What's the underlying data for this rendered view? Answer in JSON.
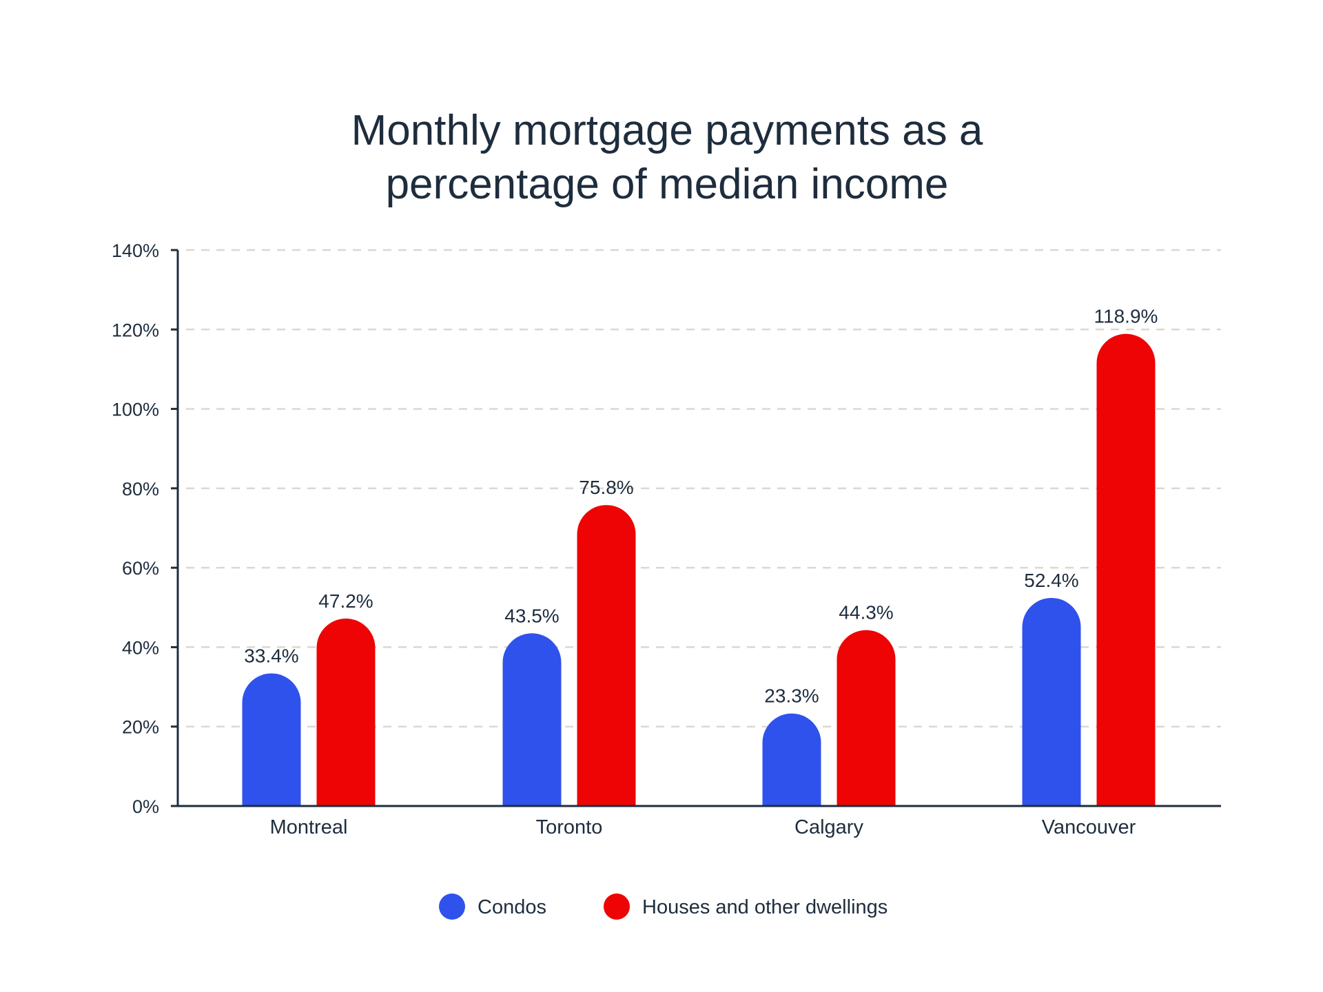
{
  "chart_data": {
    "type": "bar",
    "title": [
      "Monthly mortgage payments as a",
      "percentage of median income"
    ],
    "categories": [
      "Montreal",
      "Toronto",
      "Calgary",
      "Vancouver"
    ],
    "series": [
      {
        "name": "Condos",
        "color": "#2f52ec",
        "values": [
          33.4,
          43.5,
          23.3,
          52.4
        ],
        "labels": [
          "33.4%",
          "43.5%",
          "23.3%",
          "52.4%"
        ]
      },
      {
        "name": "Houses and other dwellings",
        "color": "#ee0404",
        "values": [
          47.2,
          75.8,
          44.3,
          118.9
        ],
        "labels": [
          "47.2%",
          "75.8%",
          "44.3%",
          "118.9%"
        ]
      }
    ],
    "ylim": [
      0,
      140
    ],
    "yticks": [
      0,
      20,
      40,
      60,
      80,
      100,
      120,
      140
    ],
    "ytick_labels": [
      "0%",
      "20%",
      "40%",
      "60%",
      "80%",
      "100%",
      "120%",
      "140%"
    ],
    "xlabel": "",
    "ylabel": "",
    "grid": "horizontal dashed",
    "legend": "bottom-center"
  }
}
